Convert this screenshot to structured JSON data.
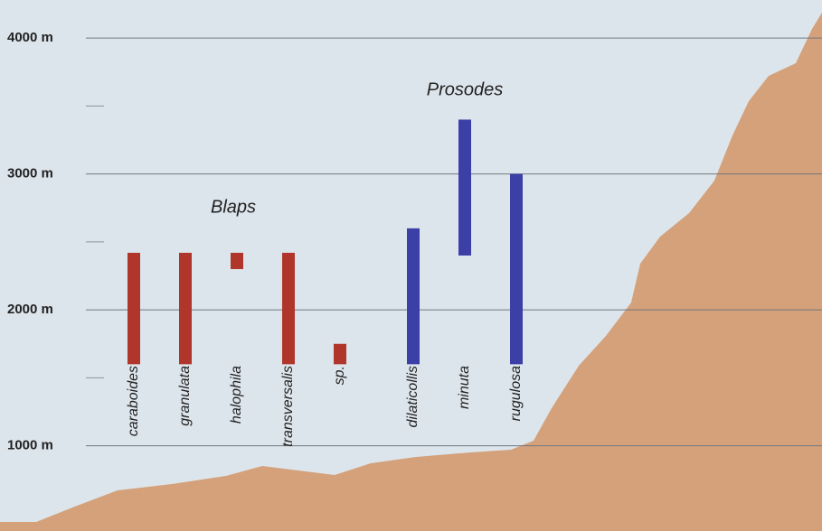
{
  "chart_data": {
    "type": "range_bar",
    "ylim": [
      373,
      4280
    ],
    "yticks": [
      {
        "value": 1000,
        "label": "1000 m"
      },
      {
        "value": 2000,
        "label": "2000 m"
      },
      {
        "value": 3000,
        "label": "3000 m"
      },
      {
        "value": 4000,
        "label": "4000 m"
      }
    ],
    "minor_yticks": [
      1500,
      2500,
      3500
    ],
    "grid": true,
    "series": [
      {
        "name": "Blaps",
        "color": "#b0362c",
        "categories": [
          "caraboides",
          "granulata",
          "halophila",
          "transversalis",
          "sp."
        ],
        "low": [
          1600,
          1600,
          2300,
          1600,
          1600
        ],
        "high": [
          2420,
          2420,
          2420,
          2420,
          1750
        ]
      },
      {
        "name": "Prosodes",
        "color": "#3b3fa6",
        "categories": [
          "dilaticollis",
          "minuta",
          "rugulosa"
        ],
        "low": [
          1600,
          2400,
          1600
        ],
        "high": [
          2600,
          3400,
          3000
        ]
      }
    ]
  }
}
